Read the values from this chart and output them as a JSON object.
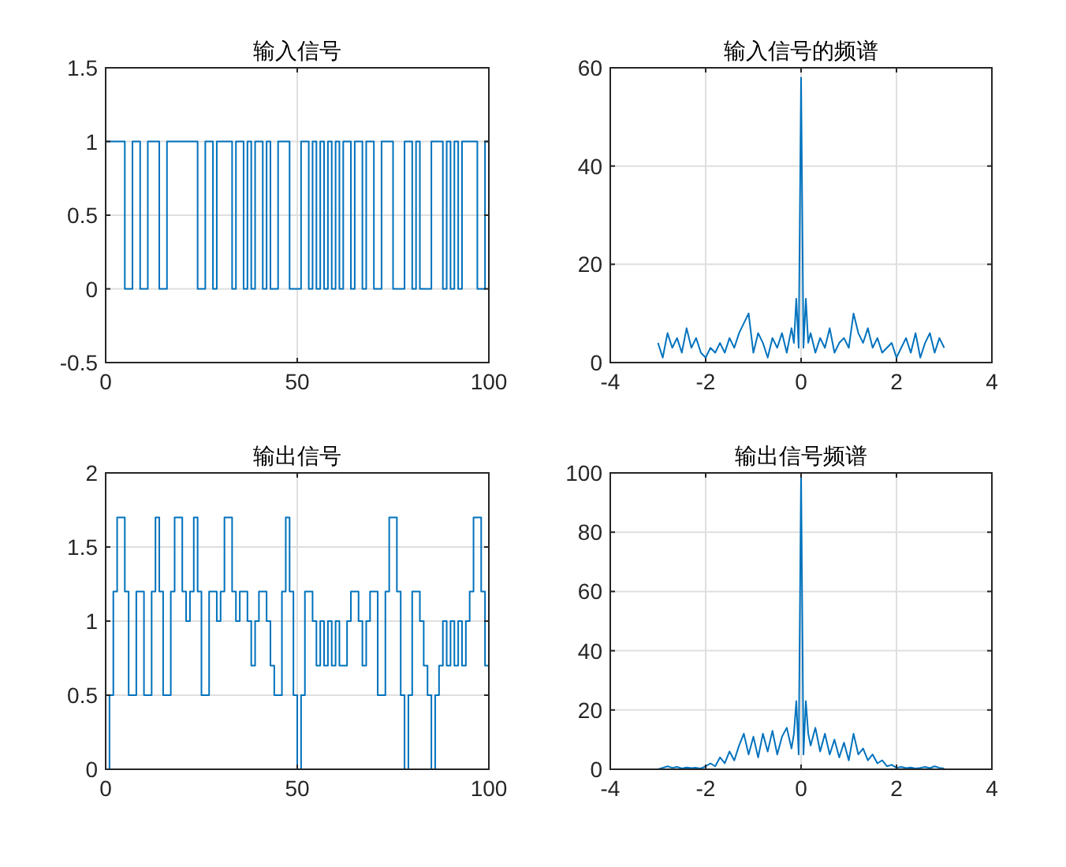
{
  "chart_data": [
    {
      "type": "step",
      "title": "输入信号",
      "xlim": [
        0,
        100
      ],
      "xticks": [
        0,
        50,
        100
      ],
      "ylim": [
        -0.5,
        1.5
      ],
      "yticks": [
        -0.5,
        0,
        0.5,
        1,
        1.5
      ],
      "grid": true,
      "series": [
        {
          "color": "#0072bd",
          "x": [
            0,
            5,
            7,
            9,
            11,
            14,
            16,
            24,
            26,
            28,
            29,
            33,
            34,
            36,
            37,
            38,
            39,
            41,
            42,
            43,
            45,
            48,
            51,
            53,
            54,
            55,
            56,
            57,
            58,
            59,
            60,
            61,
            62,
            64,
            65,
            67,
            68,
            70,
            72,
            75,
            78,
            80,
            81,
            82,
            85,
            88,
            89,
            90,
            91,
            92,
            93,
            97,
            99
          ],
          "values": [
            1,
            0,
            1,
            0,
            1,
            0,
            1,
            0,
            1,
            0,
            1,
            0,
            1,
            0,
            1,
            0,
            1,
            0,
            1,
            0,
            1,
            0,
            1,
            0,
            1,
            0,
            1,
            0,
            1,
            0,
            1,
            0,
            1,
            0,
            1,
            0,
            1,
            0,
            1,
            0,
            1,
            0,
            1,
            0,
            1,
            0,
            1,
            0,
            1,
            0,
            1,
            0,
            1
          ]
        }
      ]
    },
    {
      "type": "line",
      "title": "输入信号的频谱",
      "xlim": [
        -4,
        4
      ],
      "xticks": [
        -4,
        -2,
        0,
        2,
        4
      ],
      "ylim": [
        0,
        60
      ],
      "yticks": [
        0,
        20,
        40,
        60
      ],
      "grid": true,
      "series": [
        {
          "color": "#0072bd",
          "x": [
            -3,
            -2.9,
            -2.8,
            -2.7,
            -2.6,
            -2.5,
            -2.4,
            -2.3,
            -2.2,
            -2.1,
            -2,
            -1.9,
            -1.8,
            -1.7,
            -1.6,
            -1.5,
            -1.4,
            -1.3,
            -1.2,
            -1.1,
            -1,
            -0.9,
            -0.8,
            -0.7,
            -0.6,
            -0.5,
            -0.4,
            -0.3,
            -0.2,
            -0.15,
            -0.1,
            -0.05,
            0,
            0.05,
            0.1,
            0.15,
            0.2,
            0.3,
            0.4,
            0.5,
            0.6,
            0.7,
            0.8,
            0.9,
            1,
            1.1,
            1.2,
            1.3,
            1.4,
            1.5,
            1.6,
            1.7,
            1.8,
            1.9,
            2,
            2.1,
            2.2,
            2.3,
            2.4,
            2.5,
            2.6,
            2.7,
            2.8,
            2.9,
            3
          ],
          "values": [
            4,
            1,
            6,
            3,
            5,
            2,
            7,
            3,
            5,
            2,
            1,
            3,
            2,
            4,
            2,
            5,
            3,
            6,
            8,
            10,
            2,
            6,
            4,
            1,
            5,
            3,
            6,
            2,
            7,
            4,
            13,
            3,
            58,
            3,
            13,
            4,
            6,
            2,
            5,
            3,
            7,
            2,
            4,
            5,
            3,
            10,
            6,
            4,
            7,
            3,
            5,
            2,
            3,
            4,
            1,
            3,
            5,
            2,
            6,
            1,
            4,
            6,
            2,
            5,
            3
          ]
        }
      ]
    },
    {
      "type": "step",
      "title": "输出信号",
      "xlim": [
        0,
        100
      ],
      "xticks": [
        0,
        50,
        100
      ],
      "ylim": [
        0,
        2
      ],
      "yticks": [
        0,
        0.5,
        1,
        1.5,
        2
      ],
      "grid": true,
      "series": [
        {
          "color": "#0072bd",
          "x": [
            0,
            1,
            2,
            3,
            5,
            6,
            8,
            10,
            12,
            13,
            14,
            15,
            17,
            18,
            20,
            21,
            22,
            23,
            24,
            25,
            27,
            29,
            30,
            31,
            33,
            34,
            35,
            37,
            38,
            39,
            40,
            42,
            43,
            44,
            46,
            47,
            48,
            49,
            50,
            51,
            52,
            54,
            55,
            56,
            57,
            58,
            59,
            60,
            61,
            63,
            64,
            66,
            67,
            68,
            69,
            71,
            73,
            74,
            76,
            77,
            78,
            79,
            80,
            82,
            83,
            84,
            85,
            86,
            87,
            88,
            89,
            90,
            91,
            92,
            93,
            94,
            95,
            96,
            98,
            99
          ],
          "values": [
            0,
            0.5,
            1.2,
            1.7,
            1.2,
            0.5,
            1.2,
            0.5,
            1.2,
            1.7,
            1.2,
            0.5,
            1.2,
            1.7,
            1.2,
            1,
            1.2,
            1.7,
            1.2,
            0.5,
            1.2,
            1,
            1.2,
            1.7,
            1.2,
            1,
            1.2,
            1,
            0.7,
            1,
            1.2,
            1,
            0.7,
            0.5,
            1.2,
            1.7,
            1.2,
            0.5,
            0,
            0.5,
            1.2,
            1,
            0.7,
            1,
            0.7,
            1,
            0.7,
            1,
            0.7,
            1,
            1.2,
            1,
            0.7,
            1,
            1.2,
            0.5,
            1.2,
            1.7,
            1.2,
            0.5,
            0,
            0.5,
            1.2,
            1,
            0.7,
            0.5,
            0,
            0.5,
            0.7,
            1,
            0.7,
            1,
            0.7,
            1,
            0.7,
            1,
            1.2,
            1.7,
            1.2,
            0.7
          ]
        }
      ]
    },
    {
      "type": "line",
      "title": "输出信号频谱",
      "xlim": [
        -4,
        4
      ],
      "xticks": [
        -4,
        -2,
        0,
        2,
        4
      ],
      "ylim": [
        0,
        100
      ],
      "yticks": [
        0,
        20,
        40,
        60,
        80,
        100
      ],
      "grid": true,
      "series": [
        {
          "color": "#0072bd",
          "x": [
            -3,
            -2.9,
            -2.8,
            -2.7,
            -2.6,
            -2.5,
            -2.4,
            -2.3,
            -2.2,
            -2.1,
            -2,
            -1.9,
            -1.8,
            -1.7,
            -1.6,
            -1.5,
            -1.4,
            -1.3,
            -1.2,
            -1.1,
            -1,
            -0.9,
            -0.8,
            -0.7,
            -0.6,
            -0.5,
            -0.4,
            -0.3,
            -0.2,
            -0.15,
            -0.1,
            -0.05,
            0,
            0.05,
            0.1,
            0.15,
            0.2,
            0.3,
            0.4,
            0.5,
            0.6,
            0.7,
            0.8,
            0.9,
            1,
            1.1,
            1.2,
            1.3,
            1.4,
            1.5,
            1.6,
            1.7,
            1.8,
            1.9,
            2,
            2.1,
            2.2,
            2.3,
            2.4,
            2.5,
            2.6,
            2.7,
            2.8,
            2.9,
            3
          ],
          "values": [
            0,
            0.5,
            1,
            0.5,
            0.8,
            0.3,
            0.6,
            0.4,
            0.5,
            0.3,
            1,
            2,
            1,
            4,
            2,
            6,
            3,
            8,
            12,
            5,
            11,
            4,
            12,
            6,
            13,
            5,
            11,
            14,
            7,
            12,
            23,
            5,
            100,
            5,
            23,
            12,
            8,
            14,
            6,
            12,
            5,
            10,
            4,
            9,
            3,
            12,
            5,
            7,
            3,
            5,
            2,
            3,
            1,
            1.5,
            0.5,
            0.8,
            0.4,
            0.6,
            0.3,
            0.5,
            0.8,
            0.4,
            1,
            0.5,
            0.3
          ]
        }
      ]
    }
  ]
}
